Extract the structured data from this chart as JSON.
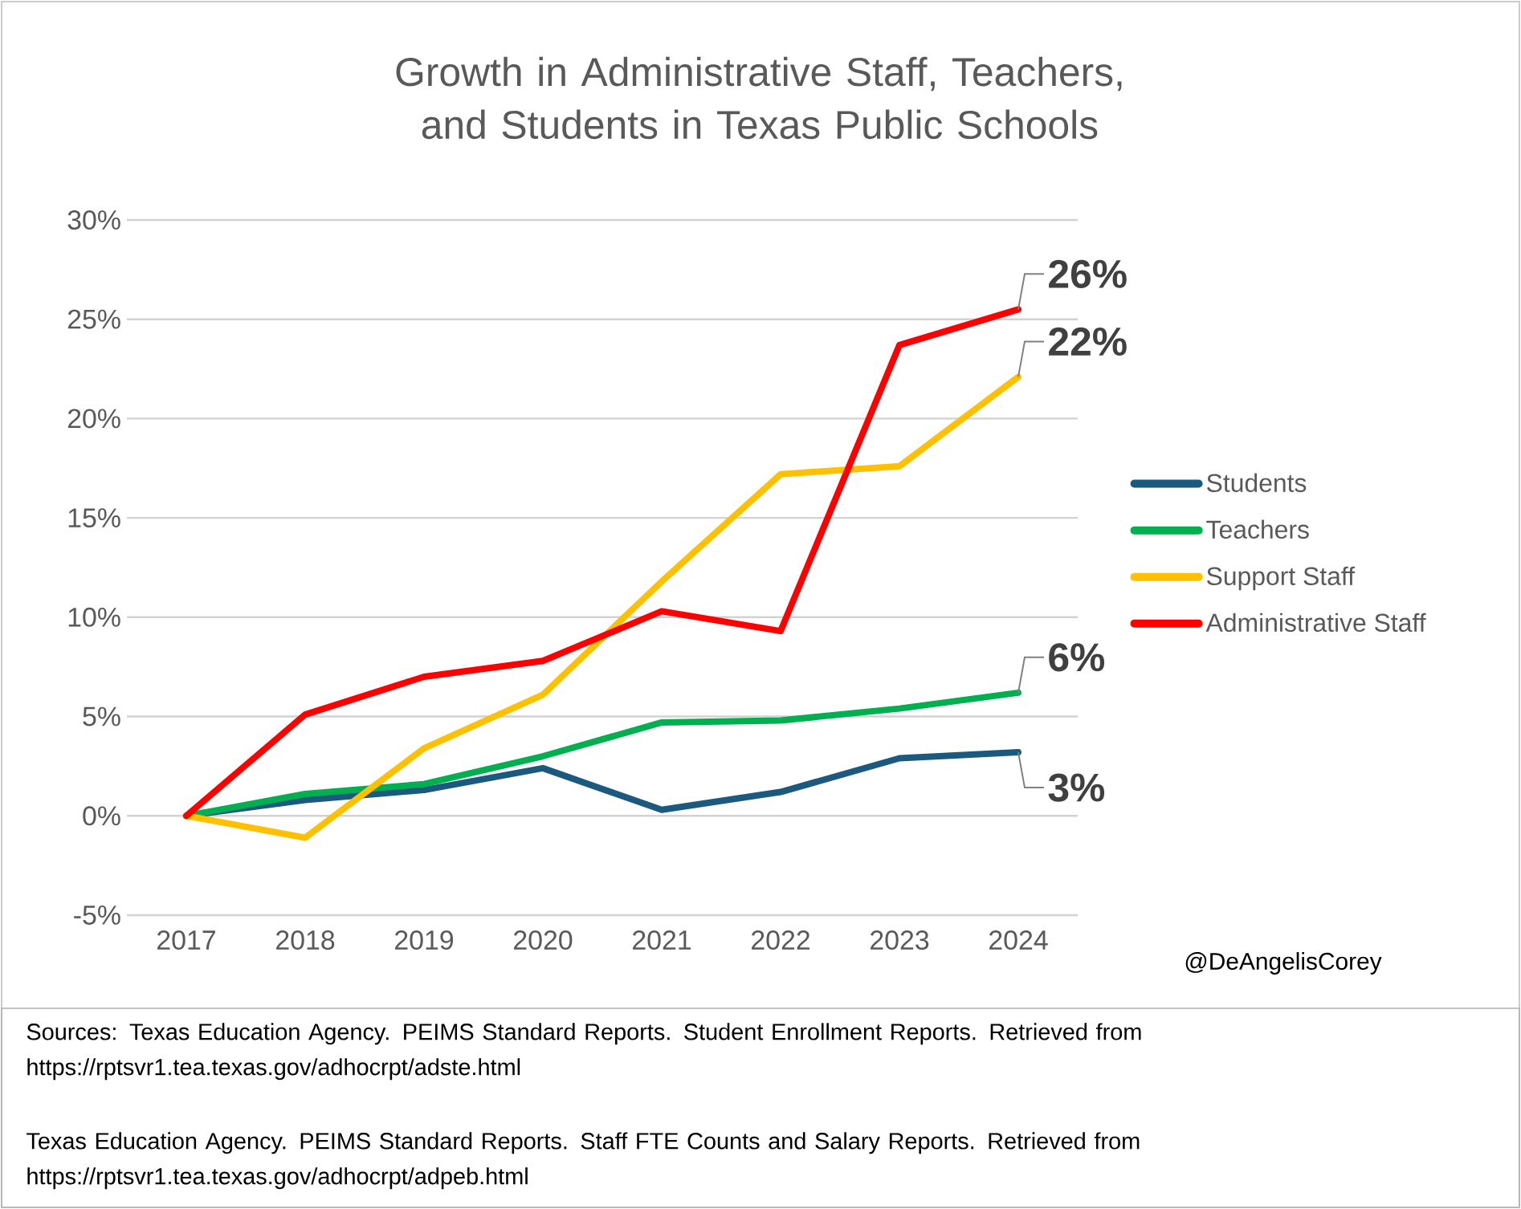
{
  "chart_data": {
    "type": "line",
    "title": "Growth in Administrative Staff, Teachers, and Students in Texas Public Schools",
    "categories": [
      "2017",
      "2018",
      "2019",
      "2020",
      "2021",
      "2022",
      "2023",
      "2024"
    ],
    "series": [
      {
        "name": "Students",
        "color": "#1b5a7e",
        "values": [
          0,
          0.8,
          1.3,
          2.4,
          0.3,
          1.2,
          2.9,
          3.2
        ]
      },
      {
        "name": "Teachers",
        "color": "#00b050",
        "values": [
          0,
          1.1,
          1.6,
          3.0,
          4.7,
          4.8,
          5.4,
          6.2
        ]
      },
      {
        "name": "Support Staff",
        "color": "#ffc000",
        "values": [
          0,
          -1.1,
          3.4,
          6.1,
          11.8,
          17.2,
          17.6,
          22.1
        ]
      },
      {
        "name": "Administrative Staff",
        "color": "#ff0000",
        "values": [
          0,
          5.1,
          7.0,
          7.8,
          10.3,
          9.3,
          23.7,
          25.5
        ]
      }
    ],
    "ylim": [
      -5,
      30
    ],
    "yticks": [
      {
        "value": -5,
        "label": "-5%"
      },
      {
        "value": 0,
        "label": "0%"
      },
      {
        "value": 5,
        "label": "5%"
      },
      {
        "value": 10,
        "label": "10%"
      },
      {
        "value": 15,
        "label": "15%"
      },
      {
        "value": 20,
        "label": "20%"
      },
      {
        "value": 25,
        "label": "25%"
      },
      {
        "value": 30,
        "label": "30%"
      }
    ],
    "grid": "y",
    "legend": "right",
    "marker": "none",
    "line_style": "solid",
    "annotations": [
      {
        "text": "26%",
        "x": "2024",
        "y": 25.5
      },
      {
        "text": "22%",
        "x": "2024",
        "y": 22.1
      },
      {
        "text": "6%",
        "x": "2024",
        "y": 6.2
      },
      {
        "text": "3%",
        "x": "2024",
        "y": 3.2
      },
      "@DeAngelisCorey",
      "Sources: Texas Education Agency. PEIMS Standard Reports. Student Enrollment Reports. Retrieved from https://rptsvr1.tea.texas.gov/adhocrpt/adste.html",
      "Texas Education Agency. PEIMS Standard Reports. Staff FTE Counts and Salary Reports. Retrieved from https://rptsvr1.tea.texas.gov/adhocrpt/adpeb.html"
    ]
  }
}
